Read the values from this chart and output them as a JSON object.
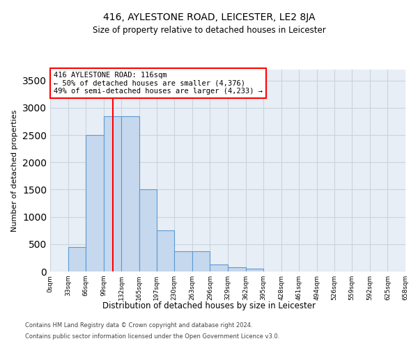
{
  "title": "416, AYLESTONE ROAD, LEICESTER, LE2 8JA",
  "subtitle": "Size of property relative to detached houses in Leicester",
  "xlabel": "Distribution of detached houses by size in Leicester",
  "ylabel": "Number of detached properties",
  "footnote1": "Contains HM Land Registry data © Crown copyright and database right 2024.",
  "footnote2": "Contains public sector information licensed under the Open Government Licence v3.0.",
  "annotation_line1": "416 AYLESTONE ROAD: 116sqm",
  "annotation_line2": "← 50% of detached houses are smaller (4,376)",
  "annotation_line3": "49% of semi-detached houses are larger (4,233) →",
  "bar_color": "#c5d8ed",
  "bar_edge_color": "#5b9bd5",
  "red_line_x": 116,
  "bin_edges": [
    0,
    33,
    66,
    99,
    132,
    165,
    197,
    230,
    263,
    296,
    329,
    362,
    395,
    428,
    461,
    494,
    526,
    559,
    592,
    625,
    658
  ],
  "bar_heights": [
    5,
    450,
    2500,
    2850,
    2850,
    1500,
    750,
    375,
    375,
    125,
    75,
    50,
    5,
    5,
    0,
    0,
    0,
    0,
    0,
    0
  ],
  "ylim": [
    0,
    3700
  ],
  "yticks": [
    0,
    500,
    1000,
    1500,
    2000,
    2500,
    3000,
    3500
  ],
  "grid_color": "#c8d4e0",
  "background_color": "#e8eef5"
}
